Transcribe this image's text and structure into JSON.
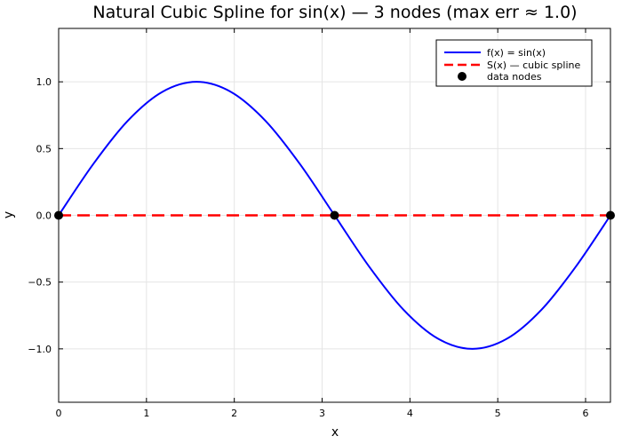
{
  "chart_data": {
    "type": "line",
    "title": "Natural Cubic Spline for sin(x) — 3 nodes  (max err ≈ 1.0)",
    "xlabel": "x",
    "ylabel": "y",
    "xlim": [
      0,
      6.2832
    ],
    "ylim": [
      -1.4,
      1.4
    ],
    "grid": true,
    "legend_position": "top-right",
    "x_ticks": [
      0,
      1,
      2,
      3,
      4,
      5,
      6
    ],
    "x_tick_labels": [
      "0",
      "1",
      "2",
      "3",
      "4",
      "5",
      "6"
    ],
    "y_ticks": [
      -1.0,
      -0.5,
      0.0,
      0.5,
      1.0
    ],
    "y_tick_labels": [
      "−1.0",
      "−0.5",
      "0.0",
      "0.5",
      "1.0"
    ],
    "series": [
      {
        "name": "f(x) = sin(x)",
        "style": "solid",
        "color": "#0000ff",
        "x": [
          0,
          0.3927,
          0.7854,
          1.1781,
          1.5708,
          1.9635,
          2.3562,
          2.7489,
          3.1416,
          3.5343,
          3.927,
          4.3197,
          4.7124,
          5.1051,
          5.4978,
          5.8905,
          6.2832
        ],
        "y": [
          0,
          0.3827,
          0.7071,
          0.9239,
          1.0,
          0.9239,
          0.7071,
          0.3827,
          0,
          -0.3827,
          -0.7071,
          -0.9239,
          -1.0,
          -0.9239,
          -0.7071,
          -0.3827,
          0
        ]
      },
      {
        "name": "S(x) — cubic spline",
        "style": "dashed",
        "color": "#ff0000",
        "x": [
          0,
          3.1416,
          6.2832
        ],
        "y": [
          0,
          0,
          0
        ]
      },
      {
        "name": "data nodes",
        "style": "markers",
        "color": "#000000",
        "x": [
          0,
          3.1416,
          6.2832
        ],
        "y": [
          0,
          0,
          0
        ]
      }
    ]
  }
}
